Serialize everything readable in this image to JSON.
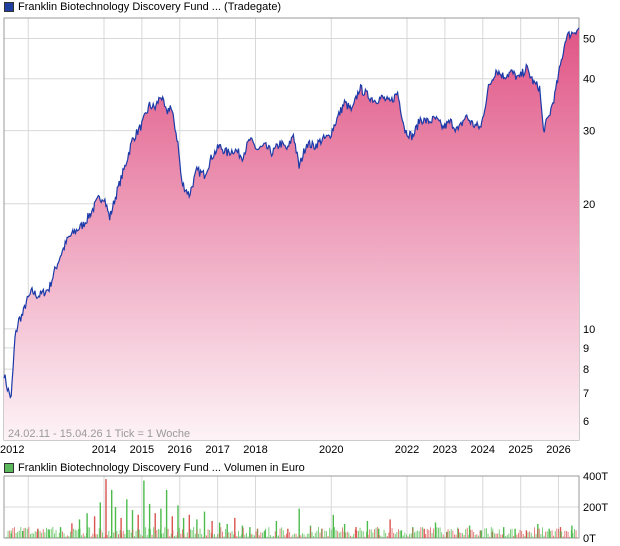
{
  "colors": {
    "price_swatch": "#1f3f9f",
    "price_line": "#1c3aa8",
    "area_top": "#e05585",
    "area_bottom": "#fdf3f7",
    "volume_swatch": "#5cb85c",
    "vol_green": "#4cbb4c",
    "vol_red": "#d9534f",
    "grid": "#d8d8d8"
  },
  "chart_data": [
    {
      "type": "area",
      "title": "Franklin Biotechnology Discovery Fund ... (Tradegate)",
      "yscale": "log",
      "ylim": [
        5.4,
        56
      ],
      "y_ticks": [
        "50",
        "40",
        "30",
        "20",
        "10",
        "9",
        "8",
        "7",
        "6"
      ],
      "y_tick_values": [
        50,
        40,
        30,
        20,
        10,
        9,
        8,
        7,
        6
      ],
      "x_tick_labels": [
        "2012",
        "2014",
        "2015",
        "2016",
        "2017",
        "2018",
        "2020",
        "2022",
        "2023",
        "2024",
        "2025",
        "2026"
      ],
      "x_tick_dates": [
        2011.75,
        2013.75,
        2014.75,
        2015.75,
        2016.75,
        2017.75,
        2019.75,
        2021.75,
        2022.75,
        2023.75,
        2024.75,
        2025.75
      ],
      "xlim": [
        2011.11,
        2026.29
      ],
      "caption": "24.02.11 - 15.04.26   1 Tick = 1 Woche",
      "series": [
        {
          "x": [
            2011.11,
            2011.2,
            2011.3,
            2011.4,
            2011.5,
            2011.6,
            2011.7,
            2011.85,
            2012.0,
            2012.15,
            2012.3,
            2012.45,
            2012.6,
            2012.8,
            2013.0,
            2013.2,
            2013.4,
            2013.6,
            2013.75,
            2013.9,
            2014.1,
            2014.3,
            2014.5,
            2014.75,
            2014.95,
            2015.1,
            2015.25,
            2015.4,
            2015.5,
            2015.6,
            2015.7,
            2015.8,
            2016.0,
            2016.2,
            2016.4,
            2016.6,
            2016.8,
            2017.0,
            2017.2,
            2017.4,
            2017.6,
            2017.8,
            2018.0,
            2018.2,
            2018.4,
            2018.6,
            2018.75,
            2018.9,
            2019.1,
            2019.3,
            2019.5,
            2019.7,
            2019.9,
            2020.1,
            2020.3,
            2020.5,
            2020.7,
            2020.9,
            2021.1,
            2021.3,
            2021.5,
            2021.7,
            2021.9,
            2022.1,
            2022.3,
            2022.5,
            2022.7,
            2022.9,
            2023.1,
            2023.3,
            2023.5,
            2023.7,
            2023.9,
            2024.1,
            2024.3,
            2024.5,
            2024.7,
            2024.9,
            2025.1,
            2025.25,
            2025.35,
            2025.5,
            2025.65,
            2025.8,
            2025.95,
            2026.1,
            2026.29
          ],
          "y": [
            7.8,
            7.2,
            6.8,
            9.5,
            10.5,
            10.8,
            11.6,
            12.3,
            12.0,
            12.2,
            12.5,
            13.8,
            15.0,
            16.5,
            17.2,
            17.8,
            19.0,
            20.5,
            20.8,
            18.5,
            21.5,
            24.5,
            28.5,
            31.0,
            34.5,
            34.0,
            36.5,
            33.0,
            34.5,
            31.5,
            28.0,
            22.5,
            21.0,
            24.0,
            23.5,
            26.0,
            27.5,
            26.5,
            27.0,
            26.0,
            28.5,
            27.0,
            27.5,
            26.5,
            28.0,
            27.0,
            29.5,
            24.5,
            28.0,
            27.5,
            28.5,
            29.0,
            32.0,
            35.0,
            33.5,
            38.0,
            36.5,
            35.5,
            36.0,
            35.0,
            37.0,
            30.0,
            29.0,
            32.0,
            31.5,
            32.0,
            30.5,
            31.5,
            30.0,
            32.5,
            31.0,
            30.5,
            38.0,
            42.0,
            40.5,
            41.5,
            40.0,
            42.5,
            39.0,
            38.0,
            30.0,
            32.5,
            36.5,
            43.0,
            50.5,
            51.5,
            53.0
          ]
        }
      ]
    },
    {
      "type": "bar",
      "title": "Franklin Biotechnology Discovery Fund ... Volumen in Euro",
      "y_ticks": [
        "400T",
        "200T",
        "0T"
      ],
      "y_tick_values": [
        400,
        200,
        0
      ],
      "ylim": [
        0,
        400
      ],
      "xlim": [
        2011.11,
        2026.29
      ],
      "series": [
        {
          "name": "",
          "x": [
            2011.3,
            2011.6,
            2012.0,
            2012.3,
            2012.6,
            2012.9,
            2013.1,
            2013.3,
            2013.5,
            2013.65,
            2013.8,
            2013.95,
            2014.05,
            2014.2,
            2014.35,
            2014.5,
            2014.65,
            2014.8,
            2014.95,
            2015.1,
            2015.25,
            2015.4,
            2015.55,
            2015.7,
            2015.85,
            2016.0,
            2016.2,
            2016.4,
            2016.6,
            2016.8,
            2017.0,
            2017.2,
            2017.4,
            2017.6,
            2017.8,
            2018.0,
            2018.3,
            2018.6,
            2018.9,
            2019.2,
            2019.5,
            2019.8,
            2020.1,
            2020.4,
            2020.7,
            2021.0,
            2021.3,
            2021.6,
            2021.9,
            2022.2,
            2022.5,
            2022.8,
            2023.1,
            2023.4,
            2023.7,
            2024.0,
            2024.3,
            2024.6,
            2024.9,
            2025.2,
            2025.5,
            2025.8,
            2026.1
          ],
          "y": [
            30,
            45,
            60,
            55,
            70,
            95,
            120,
            160,
            140,
            230,
            380,
            310,
            200,
            130,
            250,
            180,
            150,
            370,
            220,
            160,
            190,
            310,
            140,
            210,
            130,
            150,
            120,
            170,
            110,
            100,
            90,
            130,
            80,
            70,
            60,
            50,
            110,
            60,
            190,
            80,
            60,
            150,
            90,
            70,
            110,
            60,
            120,
            50,
            70,
            60,
            100,
            40,
            60,
            80,
            50,
            40,
            70,
            60,
            50,
            90,
            60,
            70,
            80
          ],
          "colors": [
            "green",
            "green",
            "red",
            "green",
            "green",
            "red",
            "green",
            "green",
            "red",
            "green",
            "red",
            "green",
            "green",
            "red",
            "green",
            "green",
            "red",
            "green",
            "green",
            "red",
            "green",
            "green",
            "red",
            "green",
            "green",
            "red",
            "green",
            "green",
            "red",
            "green",
            "green",
            "red",
            "green",
            "green",
            "red",
            "green",
            "green",
            "red",
            "green",
            "green",
            "red",
            "green",
            "green",
            "red",
            "green",
            "green",
            "red",
            "green",
            "green",
            "red",
            "green",
            "green",
            "red",
            "green",
            "green",
            "red",
            "green",
            "green",
            "red",
            "green",
            "green",
            "red",
            "green"
          ]
        }
      ]
    }
  ]
}
